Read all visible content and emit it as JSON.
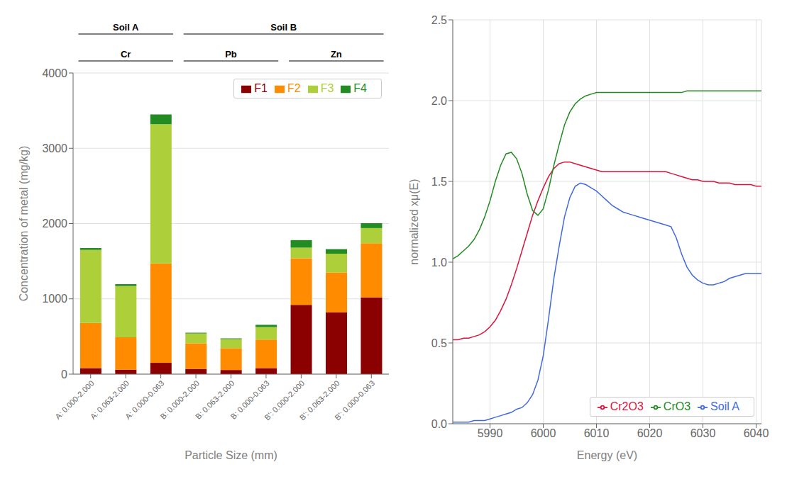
{
  "chart_data": [
    {
      "type": "bar",
      "stacked": true,
      "categories": [
        "A: 0.000-2.000",
        "A: 0.063-2.000",
        "A: 0.000-0.063",
        "B: 0.000-2.000",
        "B: 0.063-2.000",
        "B: 0.000-0.063",
        "B': 0.000-2.000",
        "B': 0.063-2.000",
        "B': 0.000-0.063"
      ],
      "series": [
        {
          "name": "F1",
          "color": "#8B0000",
          "values": [
            80,
            60,
            150,
            70,
            55,
            80,
            920,
            820,
            1020
          ]
        },
        {
          "name": "F2",
          "color": "#FF8C00",
          "values": [
            600,
            430,
            1320,
            340,
            290,
            380,
            620,
            530,
            720
          ]
        },
        {
          "name": "F3",
          "color": "#ADCF3A",
          "values": [
            970,
            680,
            1850,
            130,
            120,
            165,
            140,
            250,
            200
          ]
        },
        {
          "name": "F4",
          "color": "#228B22",
          "values": [
            25,
            25,
            130,
            10,
            10,
            30,
            100,
            60,
            65
          ]
        }
      ],
      "xlabel": "Particle Size (mm)",
      "ylabel": "Concentration of metal (mg/kg)",
      "ylim": [
        0,
        4000
      ],
      "yticks": [
        0,
        1000,
        2000,
        3000,
        4000
      ],
      "grid": "y",
      "legend": "upper right",
      "annotations": [
        [
          {
            "text": "Soil A",
            "from": "A: 0.000-2.000",
            "to": "A: 0.000-0.063"
          },
          {
            "text": "Soil B",
            "from": "B: 0.000-2.000",
            "to": "B': 0.000-0.063"
          }
        ],
        [
          {
            "text": "Cr",
            "from": "A: 0.000-2.000",
            "to": "A: 0.000-0.063"
          },
          {
            "text": "Pb",
            "from": "B: 0.000-2.000",
            "to": "B: 0.000-0.063"
          },
          {
            "text": "Zn",
            "from": "B': 0.000-2.000",
            "to": "B': 0.000-0.063"
          }
        ]
      ]
    },
    {
      "type": "line",
      "x": [
        5983,
        5984,
        5985,
        5986,
        5987,
        5988,
        5989,
        5990,
        5991,
        5992,
        5993,
        5994,
        5995,
        5996,
        5997,
        5998,
        5999,
        6000,
        6001,
        6002,
        6003,
        6004,
        6005,
        6006,
        6007,
        6008,
        6009,
        6010,
        6011,
        6012,
        6013,
        6014,
        6015,
        6016,
        6017,
        6018,
        6019,
        6020,
        6021,
        6022,
        6023,
        6024,
        6025,
        6026,
        6027,
        6028,
        6029,
        6030,
        6031,
        6032,
        6033,
        6034,
        6035,
        6036,
        6037,
        6038,
        6039,
        6040,
        6041
      ],
      "series": [
        {
          "name": "Soil A",
          "color": "#4169E1",
          "values": [
            0.01,
            0.01,
            0.01,
            0.01,
            0.02,
            0.02,
            0.02,
            0.03,
            0.04,
            0.05,
            0.06,
            0.07,
            0.09,
            0.1,
            0.13,
            0.18,
            0.27,
            0.42,
            0.65,
            0.9,
            1.1,
            1.28,
            1.4,
            1.47,
            1.49,
            1.48,
            1.46,
            1.44,
            1.41,
            1.38,
            1.35,
            1.33,
            1.31,
            1.3,
            1.29,
            1.28,
            1.27,
            1.26,
            1.25,
            1.24,
            1.23,
            1.22,
            1.15,
            1.05,
            0.97,
            0.92,
            0.89,
            0.87,
            0.86,
            0.86,
            0.87,
            0.88,
            0.9,
            0.91,
            0.92,
            0.93,
            0.93,
            0.93,
            0.93
          ]
        },
        {
          "name": "Cr2O3",
          "color": "#DC143C",
          "values": [
            0.52,
            0.52,
            0.53,
            0.53,
            0.54,
            0.55,
            0.57,
            0.6,
            0.64,
            0.7,
            0.77,
            0.86,
            0.96,
            1.07,
            1.18,
            1.29,
            1.38,
            1.46,
            1.53,
            1.58,
            1.61,
            1.62,
            1.62,
            1.61,
            1.6,
            1.59,
            1.58,
            1.57,
            1.56,
            1.56,
            1.56,
            1.56,
            1.56,
            1.56,
            1.56,
            1.56,
            1.56,
            1.56,
            1.56,
            1.56,
            1.56,
            1.55,
            1.54,
            1.53,
            1.52,
            1.51,
            1.51,
            1.5,
            1.5,
            1.5,
            1.49,
            1.49,
            1.49,
            1.48,
            1.48,
            1.48,
            1.48,
            1.47,
            1.47
          ]
        },
        {
          "name": "CrO3",
          "color": "#228B22",
          "values": [
            1.02,
            1.04,
            1.07,
            1.1,
            1.14,
            1.2,
            1.28,
            1.38,
            1.5,
            1.6,
            1.67,
            1.68,
            1.64,
            1.55,
            1.42,
            1.32,
            1.29,
            1.33,
            1.45,
            1.6,
            1.73,
            1.85,
            1.93,
            1.98,
            2.01,
            2.03,
            2.04,
            2.05,
            2.05,
            2.05,
            2.05,
            2.05,
            2.05,
            2.05,
            2.05,
            2.05,
            2.05,
            2.05,
            2.05,
            2.05,
            2.05,
            2.05,
            2.05,
            2.05,
            2.06,
            2.06,
            2.06,
            2.06,
            2.06,
            2.06,
            2.06,
            2.06,
            2.06,
            2.06,
            2.06,
            2.06,
            2.06,
            2.06,
            2.06
          ]
        }
      ],
      "xlabel": "Energy   (eV)",
      "ylabel": "normalized xμ(E)",
      "xlim": [
        5983,
        6041
      ],
      "ylim": [
        0,
        2.5
      ],
      "xticks": [
        5990,
        6000,
        6010,
        6020,
        6030,
        6040
      ],
      "yticks": [
        {
          "value": 0,
          "label": "0.0"
        },
        0.5,
        {
          "value": 1,
          "label": "1.0"
        },
        1.5,
        {
          "value": 2,
          "label": "2.0"
        },
        2.5
      ],
      "grid": true,
      "legend": "lower right"
    }
  ]
}
